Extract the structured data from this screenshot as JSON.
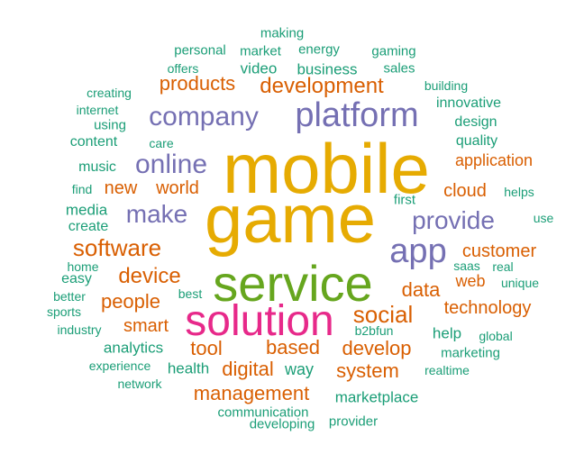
{
  "palette": {
    "teal": "#1b9e77",
    "orange": "#d95f02",
    "purple": "#7570b3",
    "magenta": "#e7298a",
    "green": "#66a61e",
    "gold": "#e6ab02"
  },
  "words": [
    {
      "text": "mobile",
      "weight": 100,
      "color": "gold"
    },
    {
      "text": "game",
      "weight": 98,
      "color": "gold"
    },
    {
      "text": "service",
      "weight": 80,
      "color": "green"
    },
    {
      "text": "solution",
      "weight": 72,
      "color": "magenta"
    },
    {
      "text": "platform",
      "weight": 58,
      "color": "purple"
    },
    {
      "text": "app",
      "weight": 56,
      "color": "purple"
    },
    {
      "text": "company",
      "weight": 46,
      "color": "purple"
    },
    {
      "text": "online",
      "weight": 46,
      "color": "purple"
    },
    {
      "text": "provide",
      "weight": 42,
      "color": "purple"
    },
    {
      "text": "make",
      "weight": 42,
      "color": "purple"
    },
    {
      "text": "software",
      "weight": 40,
      "color": "orange"
    },
    {
      "text": "social",
      "weight": 40,
      "color": "orange"
    },
    {
      "text": "development",
      "weight": 36,
      "color": "orange"
    },
    {
      "text": "device",
      "weight": 34,
      "color": "orange"
    },
    {
      "text": "people",
      "weight": 32,
      "color": "orange"
    },
    {
      "text": "develop",
      "weight": 32,
      "color": "orange"
    },
    {
      "text": "data",
      "weight": 32,
      "color": "orange"
    },
    {
      "text": "based",
      "weight": 32,
      "color": "orange"
    },
    {
      "text": "customer",
      "weight": 30,
      "color": "orange"
    },
    {
      "text": "tool",
      "weight": 30,
      "color": "orange"
    },
    {
      "text": "digital",
      "weight": 30,
      "color": "orange"
    },
    {
      "text": "system",
      "weight": 30,
      "color": "orange"
    },
    {
      "text": "management",
      "weight": 30,
      "color": "orange"
    },
    {
      "text": "products",
      "weight": 28,
      "color": "orange"
    },
    {
      "text": "world",
      "weight": 28,
      "color": "orange"
    },
    {
      "text": "new",
      "weight": 28,
      "color": "orange"
    },
    {
      "text": "cloud",
      "weight": 28,
      "color": "orange"
    },
    {
      "text": "smart",
      "weight": 28,
      "color": "orange"
    },
    {
      "text": "technology",
      "weight": 28,
      "color": "orange"
    },
    {
      "text": "application",
      "weight": 26,
      "color": "orange"
    },
    {
      "text": "web",
      "weight": 24,
      "color": "orange"
    },
    {
      "text": "way",
      "weight": 24,
      "color": "teal"
    },
    {
      "text": "analytics",
      "weight": 22,
      "color": "teal"
    },
    {
      "text": "help",
      "weight": 22,
      "color": "teal"
    },
    {
      "text": "media",
      "weight": 22,
      "color": "teal"
    },
    {
      "text": "health",
      "weight": 22,
      "color": "teal"
    },
    {
      "text": "video",
      "weight": 22,
      "color": "teal"
    },
    {
      "text": "business",
      "weight": 22,
      "color": "teal"
    },
    {
      "text": "marketplace",
      "weight": 22,
      "color": "teal"
    },
    {
      "text": "quality",
      "weight": 20,
      "color": "teal"
    },
    {
      "text": "music",
      "weight": 20,
      "color": "teal"
    },
    {
      "text": "create",
      "weight": 20,
      "color": "teal"
    },
    {
      "text": "design",
      "weight": 20,
      "color": "teal"
    },
    {
      "text": "easy",
      "weight": 20,
      "color": "teal"
    },
    {
      "text": "content",
      "weight": 20,
      "color": "teal"
    },
    {
      "text": "innovative",
      "weight": 20,
      "color": "teal"
    },
    {
      "text": "marketing",
      "weight": 18,
      "color": "teal"
    },
    {
      "text": "using",
      "weight": 18,
      "color": "teal"
    },
    {
      "text": "sales",
      "weight": 18,
      "color": "teal"
    },
    {
      "text": "gaming",
      "weight": 18,
      "color": "teal"
    },
    {
      "text": "energy",
      "weight": 18,
      "color": "teal"
    },
    {
      "text": "making",
      "weight": 18,
      "color": "teal"
    },
    {
      "text": "personal",
      "weight": 18,
      "color": "teal"
    },
    {
      "text": "market",
      "weight": 18,
      "color": "teal"
    },
    {
      "text": "first",
      "weight": 18,
      "color": "teal"
    },
    {
      "text": "communication",
      "weight": 18,
      "color": "teal"
    },
    {
      "text": "developing",
      "weight": 18,
      "color": "teal"
    },
    {
      "text": "provider",
      "weight": 18,
      "color": "teal"
    },
    {
      "text": "offers",
      "weight": 16,
      "color": "teal"
    },
    {
      "text": "building",
      "weight": 16,
      "color": "teal"
    },
    {
      "text": "creating",
      "weight": 16,
      "color": "teal"
    },
    {
      "text": "internet",
      "weight": 16,
      "color": "teal"
    },
    {
      "text": "care",
      "weight": 16,
      "color": "teal"
    },
    {
      "text": "find",
      "weight": 16,
      "color": "teal"
    },
    {
      "text": "helps",
      "weight": 16,
      "color": "teal"
    },
    {
      "text": "use",
      "weight": 16,
      "color": "teal"
    },
    {
      "text": "home",
      "weight": 16,
      "color": "teal"
    },
    {
      "text": "saas",
      "weight": 16,
      "color": "teal"
    },
    {
      "text": "real",
      "weight": 16,
      "color": "teal"
    },
    {
      "text": "unique",
      "weight": 16,
      "color": "teal"
    },
    {
      "text": "better",
      "weight": 16,
      "color": "teal"
    },
    {
      "text": "best",
      "weight": 16,
      "color": "teal"
    },
    {
      "text": "sports",
      "weight": 16,
      "color": "teal"
    },
    {
      "text": "industry",
      "weight": 16,
      "color": "teal"
    },
    {
      "text": "b2bfun",
      "weight": 16,
      "color": "teal"
    },
    {
      "text": "global",
      "weight": 16,
      "color": "teal"
    },
    {
      "text": "experience",
      "weight": 16,
      "color": "teal"
    },
    {
      "text": "realtime",
      "weight": 16,
      "color": "teal"
    },
    {
      "text": "network",
      "weight": 16,
      "color": "teal"
    }
  ]
}
